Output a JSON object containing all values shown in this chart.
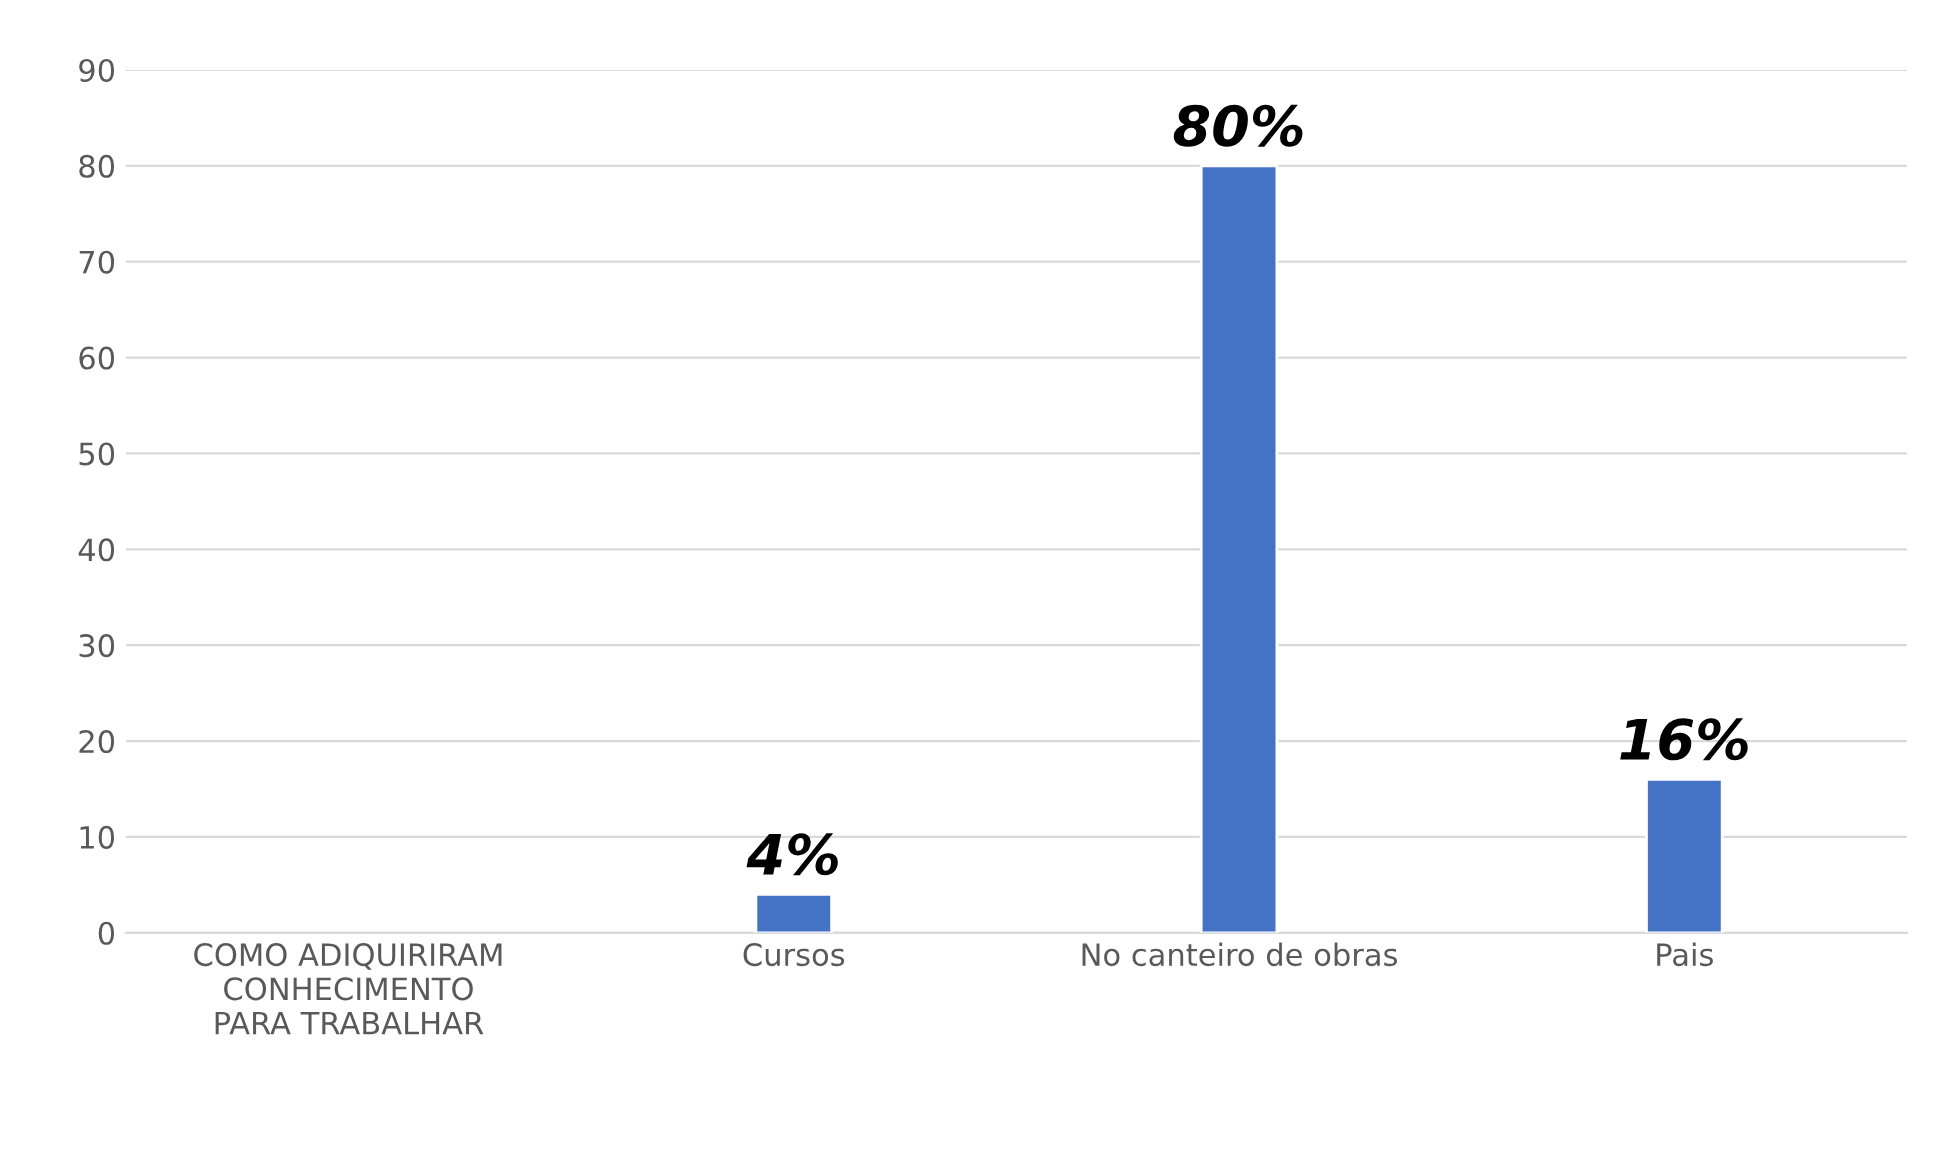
{
  "chart_data": {
    "type": "bar",
    "categories": [
      "COMO ADIQUIRIRAM\nCONHECIMENTO\nPARA TRABALHAR",
      "Cursos",
      "No canteiro de obras",
      "Pais"
    ],
    "values": [
      null,
      4,
      80,
      16
    ],
    "value_labels": [
      null,
      "4%",
      "80%",
      "16%"
    ],
    "color": "#4472c4",
    "ylim": [
      0,
      90
    ],
    "yticks": [
      0,
      10,
      20,
      30,
      40,
      50,
      60,
      70,
      80,
      90
    ],
    "grid": "y",
    "legend": false
  }
}
